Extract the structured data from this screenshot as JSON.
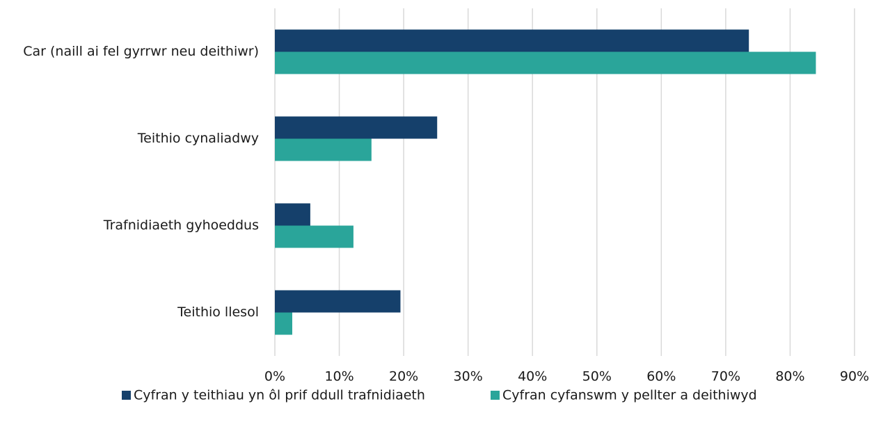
{
  "chart_data": {
    "type": "hbar",
    "categories": [
      "Car (naill ai fel gyrrwr neu deithiwr)",
      "Teithio cynaliadwy",
      "Trafnidiaeth gyhoeddus",
      "Teithio llesol"
    ],
    "series": [
      {
        "name": "Cyfran y teithiau yn ôl prif ddull trafnidiaeth",
        "color": "#15406b",
        "values": [
          73.6,
          25.2,
          5.5,
          19.5
        ]
      },
      {
        "name": "Cyfran cyfanswm y pellter a deithiwyd",
        "color": "#2aa59a",
        "values": [
          84.0,
          15.0,
          12.2,
          2.7
        ]
      }
    ],
    "xlim": [
      0,
      90
    ],
    "xticks": [
      {
        "value": 0,
        "label": "0%"
      },
      {
        "value": 10,
        "label": "10%"
      },
      {
        "value": 20,
        "label": "20%"
      },
      {
        "value": 30,
        "label": "30%"
      },
      {
        "value": 40,
        "label": "40%"
      },
      {
        "value": 50,
        "label": "50%"
      },
      {
        "value": 60,
        "label": "60%"
      },
      {
        "value": 70,
        "label": "70%"
      },
      {
        "value": 80,
        "label": "80%"
      },
      {
        "value": 90,
        "label": "90%"
      }
    ],
    "grid": true,
    "legend": "bottom"
  }
}
